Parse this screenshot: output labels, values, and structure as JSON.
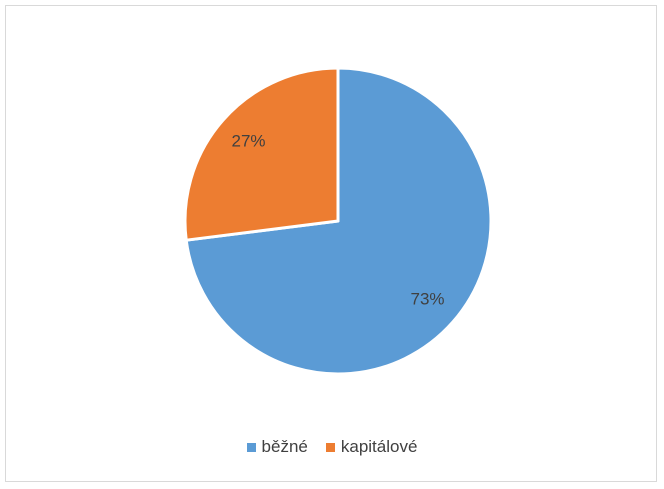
{
  "chart_data": {
    "type": "pie",
    "categories": [
      "běžné",
      "kapitálové"
    ],
    "values": [
      73,
      27
    ],
    "data_labels": [
      "73%",
      "27%"
    ],
    "colors": [
      "#5b9bd5",
      "#ed7d31"
    ],
    "title": "",
    "legend_position": "bottom",
    "start_angle": "top, clockwise"
  }
}
